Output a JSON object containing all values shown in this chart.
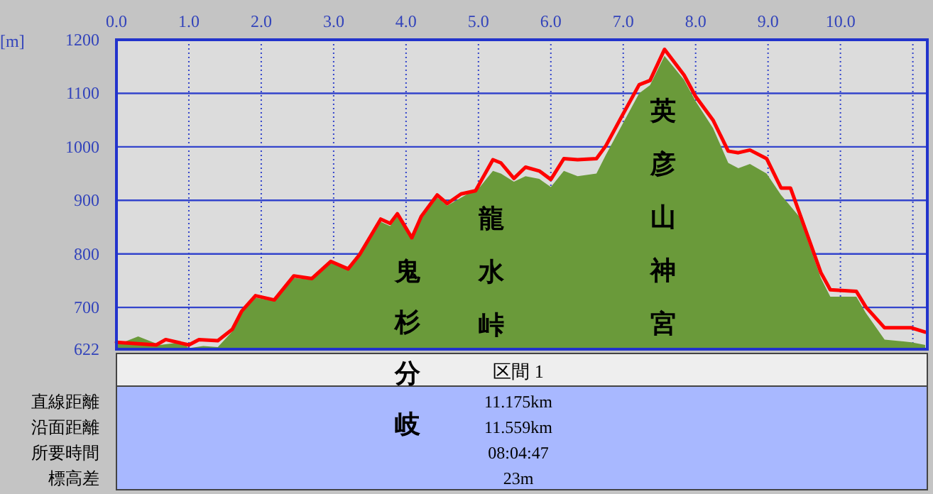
{
  "chart_data": {
    "type": "area",
    "ylabel": "[m]",
    "xlim": [
      0,
      11.2
    ],
    "ylim": [
      622,
      1200
    ],
    "xticks": [
      {
        "value": 0,
        "label": "0.0"
      },
      {
        "value": 1,
        "label": "1.0"
      },
      {
        "value": 2,
        "label": "2.0"
      },
      {
        "value": 3,
        "label": "3.0"
      },
      {
        "value": 4,
        "label": "4.0"
      },
      {
        "value": 5,
        "label": "5.0"
      },
      {
        "value": 6,
        "label": "6.0"
      },
      {
        "value": 7,
        "label": "7.0"
      },
      {
        "value": 8,
        "label": "8.0"
      },
      {
        "value": 9,
        "label": "9.0"
      },
      {
        "value": 10,
        "label": "10.0"
      },
      {
        "value": 11,
        "label": null
      }
    ],
    "yticks": [
      622,
      700,
      800,
      900,
      1000,
      1100,
      1200
    ],
    "grid": true,
    "series": [
      {
        "type": "area",
        "color": "#6a9a3a",
        "x": [
          0,
          0.3,
          0.6,
          0.9,
          1.0,
          1.2,
          1.4,
          1.6,
          1.73,
          1.92,
          2.18,
          2.45,
          2.7,
          2.96,
          3.2,
          3.36,
          3.65,
          3.78,
          3.88,
          4.08,
          4.21,
          4.43,
          4.57,
          4.76,
          5.02,
          5.2,
          5.31,
          5.49,
          5.65,
          5.84,
          6.0,
          6.18,
          6.37,
          6.63,
          6.76,
          6.98,
          7.22,
          7.37,
          7.57,
          7.84,
          8.0,
          8.24,
          8.45,
          8.59,
          8.75,
          8.98,
          9.18,
          9.43,
          9.73,
          9.86,
          10.22,
          10.35,
          10.61,
          10.98,
          11.17
        ],
        "values": [
          630,
          646,
          630,
          635,
          624,
          628,
          626,
          655,
          690,
          718,
          712,
          755,
          752,
          783,
          770,
          795,
          860,
          852,
          870,
          826,
          865,
          905,
          890,
          905,
          925,
          955,
          950,
          935,
          945,
          940,
          925,
          955,
          945,
          950,
          985,
          1040,
          1100,
          1115,
          1170,
          1125,
          1085,
          1035,
          970,
          960,
          968,
          950,
          910,
          870,
          755,
          720,
          720,
          690,
          640,
          635,
          630
        ]
      },
      {
        "type": "line",
        "color": "#ff0000",
        "x": [
          0,
          0.55,
          0.68,
          1.0,
          1.14,
          1.4,
          1.6,
          1.73,
          1.92,
          2.18,
          2.45,
          2.7,
          2.96,
          3.2,
          3.36,
          3.65,
          3.78,
          3.88,
          4.08,
          4.21,
          4.43,
          4.57,
          4.76,
          4.96,
          5.2,
          5.31,
          5.49,
          5.65,
          5.84,
          6.0,
          6.18,
          6.37,
          6.63,
          6.76,
          6.98,
          7.22,
          7.37,
          7.57,
          7.84,
          8.0,
          8.24,
          8.45,
          8.59,
          8.75,
          8.98,
          9.18,
          9.31,
          9.43,
          9.73,
          9.86,
          10.22,
          10.35,
          10.61,
          10.98,
          11.17
        ],
        "values": [
          635,
          630,
          640,
          630,
          640,
          638,
          659,
          693,
          722,
          714,
          759,
          754,
          786,
          772,
          799,
          865,
          857,
          875,
          830,
          870,
          910,
          894,
          912,
          918,
          976,
          970,
          941,
          962,
          955,
          939,
          978,
          976,
          978,
          1002,
          1057,
          1116,
          1124,
          1182,
          1134,
          1094,
          1050,
          992,
          989,
          994,
          978,
          923,
          923,
          878,
          765,
          733,
          730,
          701,
          662,
          662,
          654
        ]
      }
    ],
    "annotations": [
      "鬼杉分岐",
      "龍水峠",
      "英彦山神宮",
      "区間 1",
      "直線距離",
      "11.175km",
      "沿面距離",
      "11.559km",
      "所要時間",
      "08:04:47",
      "標高差",
      "23m"
    ]
  }
}
